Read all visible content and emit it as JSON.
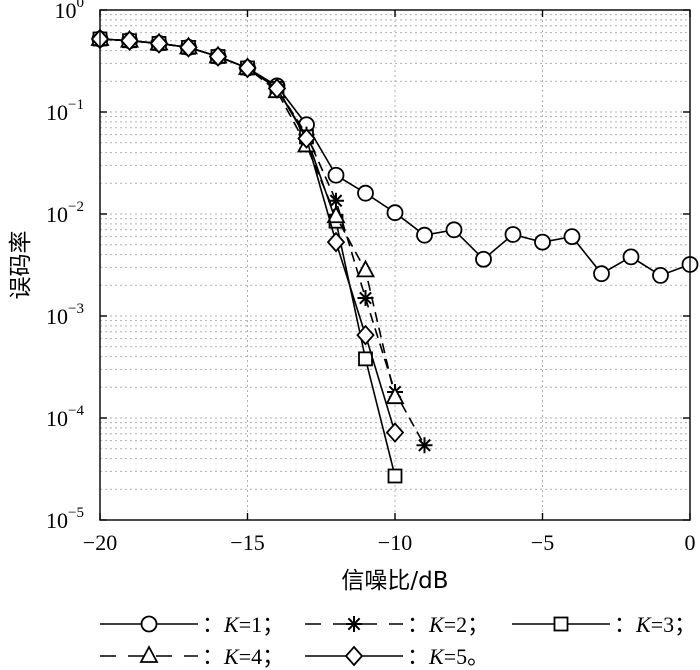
{
  "chart_data": {
    "type": "line",
    "xlabel": "信噪比/dB",
    "ylabel": "误码率",
    "xlim": [
      -20,
      0
    ],
    "ylim": [
      1e-05,
      1
    ],
    "yscale": "log",
    "grid": true,
    "x_ticks": [
      "−20",
      "−15",
      "−10",
      "−5",
      "0"
    ],
    "y_ticks": [
      {
        "base": "10",
        "exp": "0"
      },
      {
        "base": "10",
        "exp": "−1"
      },
      {
        "base": "10",
        "exp": "−2"
      },
      {
        "base": "10",
        "exp": "−3"
      },
      {
        "base": "10",
        "exp": "−4"
      },
      {
        "base": "10",
        "exp": "−5"
      }
    ],
    "legend_placement": "bottom",
    "legend_suffix": [
      "；",
      "；",
      "；",
      "；",
      "。"
    ],
    "series": [
      {
        "name": "K=1",
        "marker": "circle",
        "dash": "solid",
        "x": [
          -20,
          -19,
          -18,
          -17,
          -16,
          -15,
          -14,
          -13,
          -12,
          -11,
          -10,
          -9,
          -8,
          -7,
          -6,
          -5,
          -4,
          -3,
          -2,
          -1,
          0
        ],
        "y": [
          0.52,
          0.5,
          0.47,
          0.43,
          0.35,
          0.27,
          0.18,
          0.075,
          0.024,
          0.016,
          0.0103,
          0.0062,
          0.007,
          0.0036,
          0.0063,
          0.0053,
          0.006,
          0.0026,
          0.0038,
          0.0025,
          0.0032
        ]
      },
      {
        "name": "K=2",
        "marker": "star",
        "dash": "dashed",
        "x": [
          -20,
          -19,
          -18,
          -17,
          -16,
          -15,
          -14,
          -13,
          -12,
          -11,
          -10,
          -9
        ],
        "y": [
          0.52,
          0.5,
          0.47,
          0.43,
          0.35,
          0.27,
          0.17,
          0.06,
          0.0135,
          0.0015,
          0.00018,
          5.4e-05
        ]
      },
      {
        "name": "K=3",
        "marker": "square",
        "dash": "solid",
        "x": [
          -20,
          -19,
          -18,
          -17,
          -16,
          -15,
          -14,
          -13,
          -12,
          -11,
          -10
        ],
        "y": [
          0.52,
          0.5,
          0.47,
          0.43,
          0.35,
          0.27,
          0.17,
          0.057,
          0.0085,
          0.00038,
          2.7e-05
        ]
      },
      {
        "name": "K=4",
        "marker": "triangle",
        "dash": "dashed",
        "x": [
          -20,
          -19,
          -18,
          -17,
          -16,
          -15,
          -14,
          -13,
          -12,
          -11,
          -10
        ],
        "y": [
          0.52,
          0.5,
          0.47,
          0.43,
          0.35,
          0.27,
          0.16,
          0.047,
          0.0095,
          0.0028,
          0.00016
        ]
      },
      {
        "name": "K=5",
        "marker": "diamond",
        "dash": "solid",
        "x": [
          -20,
          -19,
          -18,
          -17,
          -16,
          -15,
          -14,
          -13,
          -12,
          -11,
          -10
        ],
        "y": [
          0.52,
          0.5,
          0.47,
          0.43,
          0.35,
          0.27,
          0.17,
          0.055,
          0.0053,
          0.00065,
          7.2e-05
        ]
      }
    ]
  }
}
